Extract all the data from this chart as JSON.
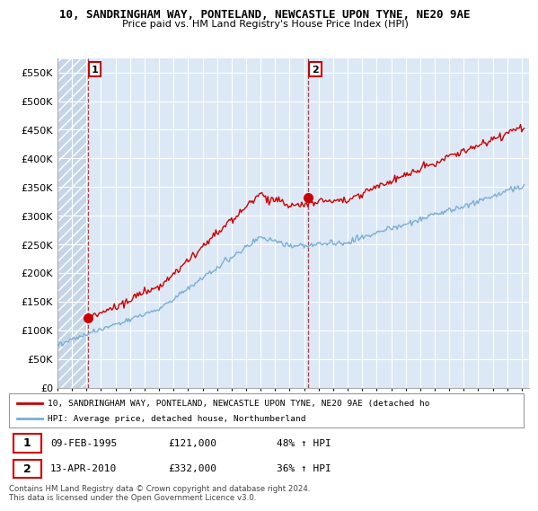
{
  "title1": "10, SANDRINGHAM WAY, PONTELAND, NEWCASTLE UPON TYNE, NE20 9AE",
  "title2": "Price paid vs. HM Land Registry's House Price Index (HPI)",
  "ylim": [
    0,
    575000
  ],
  "yticks": [
    0,
    50000,
    100000,
    150000,
    200000,
    250000,
    300000,
    350000,
    400000,
    450000,
    500000,
    550000
  ],
  "ytick_labels": [
    "£0",
    "£50K",
    "£100K",
    "£150K",
    "£200K",
    "£250K",
    "£300K",
    "£350K",
    "£400K",
    "£450K",
    "£500K",
    "£550K"
  ],
  "sale1_date": 1995.1,
  "sale1_price": 121000,
  "sale2_date": 2010.27,
  "sale2_price": 332000,
  "legend_line1": "10, SANDRINGHAM WAY, PONTELAND, NEWCASTLE UPON TYNE, NE20 9AE (detached ho",
  "legend_line2": "HPI: Average price, detached house, Northumberland",
  "note1_label": "1",
  "note1_date": "09-FEB-1995",
  "note1_price": "£121,000",
  "note1_hpi": "48% ↑ HPI",
  "note2_label": "2",
  "note2_date": "13-APR-2010",
  "note2_price": "£332,000",
  "note2_hpi": "36% ↑ HPI",
  "footer": "Contains HM Land Registry data © Crown copyright and database right 2024.\nThis data is licensed under the Open Government Licence v3.0.",
  "line_color_red": "#cc0000",
  "line_color_blue": "#7aafd4",
  "bg_color": "#dce8f5",
  "hatch_color": "#c5d5e8",
  "grid_color": "#ffffff",
  "sale_marker_color": "#cc0000"
}
